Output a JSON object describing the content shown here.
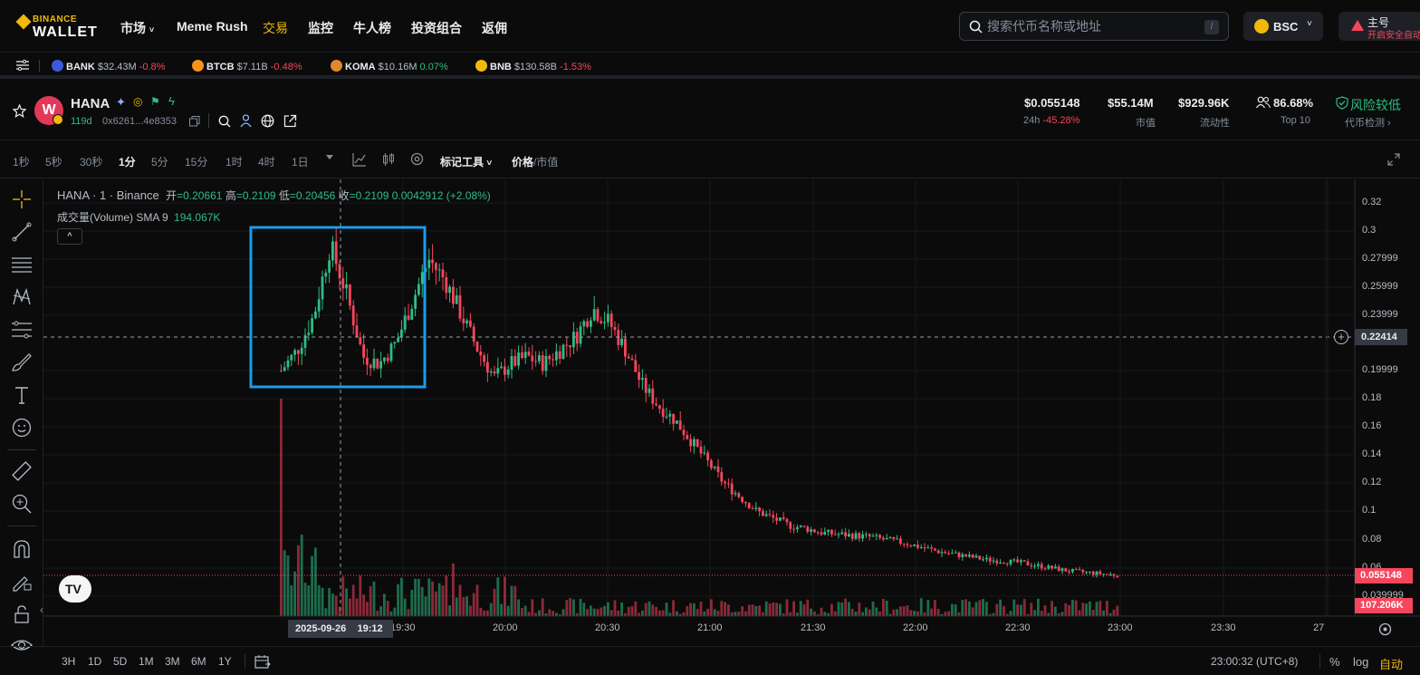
{
  "brand": {
    "top": "BINANCE",
    "bottom": "WALLET"
  },
  "nav": [
    {
      "label": "市场",
      "caret": "˅"
    },
    {
      "label": "Meme Rush"
    },
    {
      "label": "交易",
      "active": true
    },
    {
      "label": "监控"
    },
    {
      "label": "牛人榜"
    },
    {
      "label": "投资组合"
    },
    {
      "label": "返佣"
    }
  ],
  "search": {
    "placeholder": "搜索代币名称或地址",
    "shortcut": "/"
  },
  "chain": {
    "label": "BSC"
  },
  "account": {
    "name": "主号",
    "warning": "开启安全自动"
  },
  "tickers": [
    {
      "symbol": "BANK",
      "value": "$32.43M",
      "change": "-0.8%",
      "dir": "neg",
      "color": "#3b5bdb"
    },
    {
      "symbol": "BTCB",
      "value": "$7.11B",
      "change": "-0.48%",
      "dir": "neg",
      "color": "#f7931a"
    },
    {
      "symbol": "KOMA",
      "value": "$10.16M",
      "change": "0.07%",
      "dir": "pos",
      "color": "#e0892b"
    },
    {
      "symbol": "BNB",
      "value": "$130.58B",
      "change": "-1.53%",
      "dir": "neg",
      "color": "#f0b90b"
    }
  ],
  "token": {
    "name": "HANA",
    "avatar_letter": "W",
    "age": "119d",
    "address": "0x6261...4e8353",
    "price": "$0.055148",
    "change_label": "24h",
    "change": "-45.28%",
    "market_cap": "$55.14M",
    "market_cap_label": "市值",
    "liquidity": "$929.96K",
    "liquidity_label": "流动性",
    "top10": "86.68%",
    "top10_label": "Top 10",
    "risk": "风险较低",
    "risk_label": "代币检测 ›"
  },
  "timeframes": [
    "1秒",
    "5秒",
    "30秒",
    "1分",
    "5分",
    "15分",
    "1时",
    "4时",
    "1日"
  ],
  "active_timeframe": "1分",
  "toolbar": {
    "mark_tools": "标记工具",
    "price": "价格",
    "divider": "/",
    "mcap": "市值"
  },
  "legend": {
    "title": "HANA · 1 · Binance",
    "open_l": "开",
    "open": "=0.20661",
    "high_l": "高",
    "high": "=0.2109",
    "low_l": "低",
    "low": "=0.20456",
    "close_l": "收",
    "close": "=0.2109",
    "change": "0.0042912 (+2.08%)",
    "volume_label": "成交量(Volume) SMA 9",
    "volume_value": "194.067K"
  },
  "price_axis": [
    "0.32",
    "0.3",
    "0.27999",
    "0.25999",
    "0.23999",
    "0.19999",
    "0.18",
    "0.16",
    "0.14",
    "0.12",
    "0.1",
    "0.08",
    "0.06",
    "0.039999"
  ],
  "crosshair_price": "0.22414",
  "last_price": "0.055148",
  "last_volume": "107.206K",
  "time_axis": [
    "19:30",
    "20:00",
    "20:30",
    "21:00",
    "21:30",
    "22:00",
    "22:30",
    "23:00",
    "23:30",
    "27"
  ],
  "crosshair_time": {
    "date": "2025-09-26",
    "time": "19:12"
  },
  "ranges": [
    "3H",
    "1D",
    "5D",
    "1M",
    "3M",
    "6M",
    "1Y"
  ],
  "clock": "23:00:32 (UTC+8)",
  "scale_opts": {
    "pct": "%",
    "log": "log",
    "auto": "自动"
  },
  "colors": {
    "up": "#2ebd85",
    "down": "#f6465d",
    "accent": "#f0b90b",
    "highlight": "#1e9be8"
  },
  "chart_data": {
    "type": "candlestick",
    "series": [
      {
        "name": "HANA",
        "price_path": [
          0.2,
          0.215,
          0.24,
          0.29,
          0.255,
          0.21,
          0.205,
          0.22,
          0.25,
          0.28,
          0.265,
          0.24,
          0.215,
          0.195,
          0.205,
          0.21,
          0.205,
          0.215,
          0.225,
          0.245,
          0.235,
          0.215,
          0.19,
          0.175,
          0.165,
          0.15,
          0.135,
          0.12,
          0.11,
          0.1,
          0.095,
          0.09,
          0.088,
          0.085,
          0.084,
          0.083,
          0.082,
          0.08,
          0.078,
          0.075,
          0.072,
          0.07,
          0.068,
          0.066,
          0.065,
          0.064,
          0.062,
          0.06,
          0.058,
          0.057,
          0.056,
          0.055
        ]
      }
    ],
    "ylim": [
      0.03,
      0.33
    ]
  }
}
